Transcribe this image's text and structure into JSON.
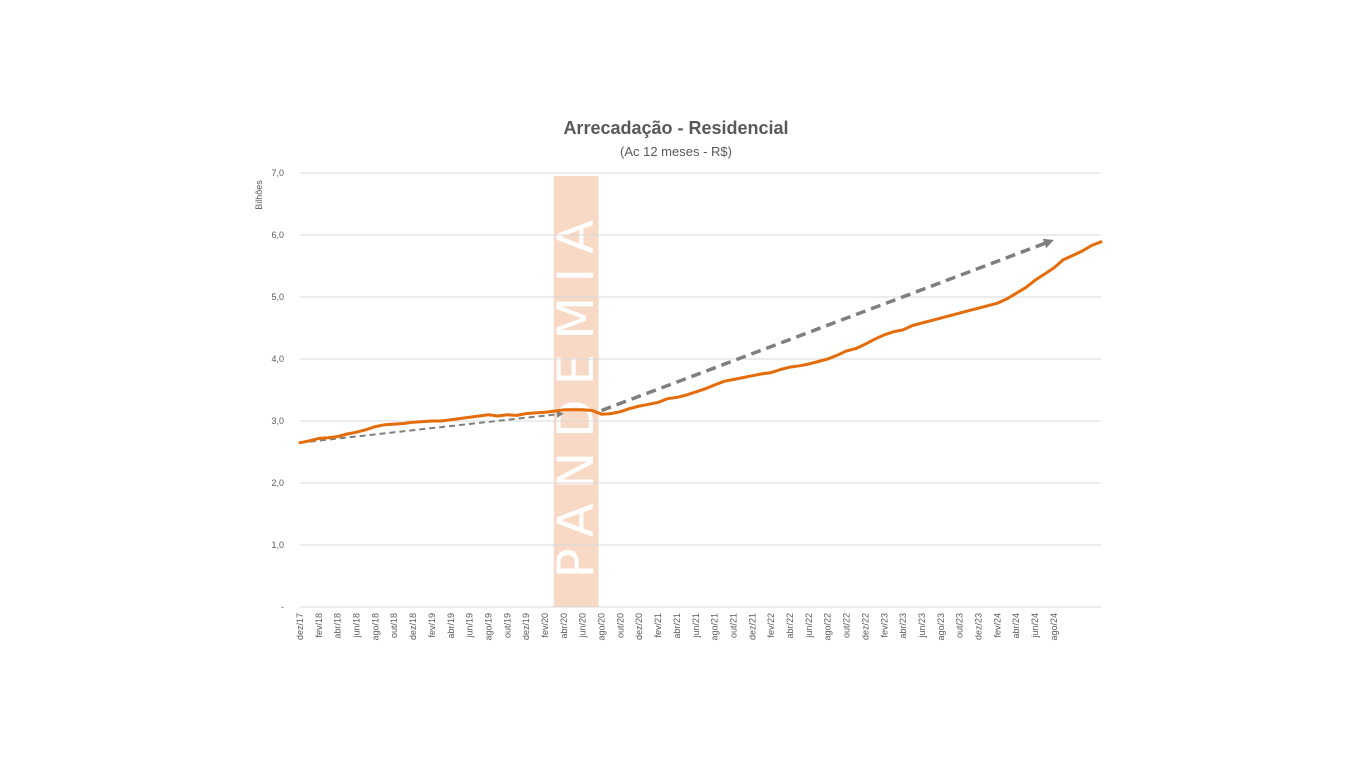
{
  "chart_data": {
    "type": "line",
    "title": "Arrecadação - Residencial",
    "subtitle": "(Ac 12 meses - R$)",
    "ylabel": "Bilhões",
    "xlabel": "",
    "ylim": [
      0,
      7
    ],
    "y_ticks": [
      {
        "value": 0,
        "label": "-"
      },
      {
        "value": 1,
        "label": "1,0"
      },
      {
        "value": 2,
        "label": "2,0"
      },
      {
        "value": 3,
        "label": "3,0"
      },
      {
        "value": 4,
        "label": "4,0"
      },
      {
        "value": 5,
        "label": "5,0"
      },
      {
        "value": 6,
        "label": "6,0"
      },
      {
        "value": 7,
        "label": "7,0"
      }
    ],
    "grid": true,
    "x_tick_labels": [
      "dez/17",
      "fev/18",
      "abr/18",
      "jun/18",
      "ago/18",
      "out/18",
      "dez/18",
      "fev/19",
      "abr/19",
      "jun/19",
      "ago/19",
      "out/19",
      "dez/19",
      "fev/20",
      "abr/20",
      "jun/20",
      "ago/20",
      "out/20",
      "dez/20",
      "fev/21",
      "abr/21",
      "jun/21",
      "ago/21",
      "out/21",
      "dez/21",
      "fev/22",
      "abr/22",
      "jun/22",
      "ago/22",
      "out/22",
      "dez/22",
      "fev/23",
      "abr/23",
      "jun/23",
      "ago/23",
      "out/23",
      "dez/23",
      "fev/24",
      "abr/24",
      "jun/24",
      "ago/24"
    ],
    "x_start": "dez/17",
    "series": [
      {
        "color": "#E46C0A",
        "values": [
          2.65,
          2.68,
          2.72,
          2.73,
          2.75,
          2.79,
          2.82,
          2.86,
          2.91,
          2.94,
          2.95,
          2.96,
          2.98,
          2.99,
          3.0,
          3.0,
          3.02,
          3.04,
          3.06,
          3.08,
          3.1,
          3.08,
          3.1,
          3.09,
          3.12,
          3.13,
          3.14,
          3.16,
          3.18,
          3.18,
          3.18,
          3.17,
          3.11,
          3.12,
          3.15,
          3.2,
          3.24,
          3.27,
          3.3,
          3.36,
          3.38,
          3.42,
          3.47,
          3.52,
          3.58,
          3.64,
          3.67,
          3.7,
          3.73,
          3.76,
          3.78,
          3.83,
          3.87,
          3.89,
          3.92,
          3.96,
          4.0,
          4.06,
          4.13,
          4.17,
          4.24,
          4.32,
          4.39,
          4.44,
          4.47,
          4.54,
          4.58,
          4.62,
          4.66,
          4.7,
          4.74,
          4.78,
          4.82,
          4.86,
          4.9,
          4.97,
          5.06,
          5.15,
          5.27,
          5.37,
          5.47,
          5.6,
          5.67,
          5.74,
          5.83,
          5.89
        ]
      }
    ],
    "trend_lines": [
      {
        "color": "#7F7F7F",
        "style": "dashed",
        "from": {
          "x": "dez/17",
          "y": 2.65
        },
        "to": {
          "x": "abr/20",
          "y": 3.12
        }
      },
      {
        "color": "#7F7F7F",
        "style": "dashed",
        "from": {
          "x": "ago/20",
          "y": 3.17
        },
        "to": {
          "x": "ago/24",
          "y": 5.92
        }
      }
    ],
    "annotation": {
      "text": "PANDEMIA",
      "from": "abr/20",
      "to": "ago/20",
      "color": "#F8D9C5"
    }
  }
}
